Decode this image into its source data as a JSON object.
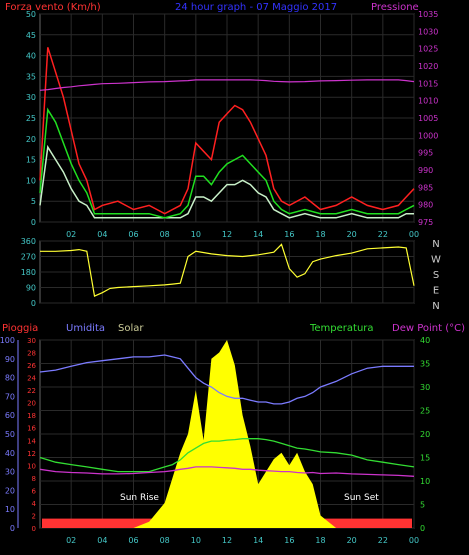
{
  "header": {
    "left_title": "Forza vento (Km/h)",
    "center_title": "24 hour graph - 07 Maggio 2017",
    "right_title": "Pressione"
  },
  "colors": {
    "wind_gust": "#ff2020",
    "wind_avg": "#20e020",
    "wind_speed": "#c8f0c8",
    "pressure": "#cc33cc",
    "direction": "#ffff33",
    "humidity": "#7b7bff",
    "temperature": "#33dd33",
    "dewpoint": "#cc33cc",
    "solar": "#ffff00",
    "rain": "#ff3333",
    "grid": "#2a2a2a",
    "axis_cyan": "#44c8c8"
  },
  "x_ticks": [
    "02",
    "04",
    "06",
    "08",
    "10",
    "12",
    "14",
    "16",
    "18",
    "20",
    "22",
    "00"
  ],
  "chart_data": [
    {
      "type": "line",
      "panel": "wind_pressure",
      "left_axis": {
        "label": "Forza vento (Km/h)",
        "ticks": [
          "0",
          "5",
          "10",
          "15",
          "20",
          "25",
          "30",
          "35",
          "40",
          "45",
          "50"
        ],
        "ylim": [
          0,
          50
        ]
      },
      "right_axis": {
        "label": "Pressione",
        "ticks": [
          "975",
          "980",
          "985",
          "990",
          "995",
          "1000",
          "1005",
          "1010",
          "1015",
          "1020",
          "1025",
          "1030",
          "1035"
        ],
        "ylim": [
          975,
          1035
        ]
      },
      "x": [
        0,
        0.5,
        1,
        1.5,
        2,
        2.5,
        3,
        3.5,
        4,
        5,
        6,
        7,
        8,
        9,
        9.5,
        10,
        10.5,
        11,
        11.5,
        12,
        12.5,
        13,
        13.5,
        14,
        14.5,
        15,
        15.5,
        16,
        17,
        18,
        19,
        20,
        21,
        22,
        23,
        23.5,
        24
      ],
      "series": [
        {
          "name": "Gust",
          "values": [
            10,
            42,
            36,
            30,
            22,
            14,
            10,
            3,
            4,
            5,
            3,
            4,
            2,
            4,
            8,
            19,
            17,
            15,
            24,
            26,
            28,
            27,
            24,
            20,
            16,
            8,
            5,
            4,
            6,
            3,
            4,
            6,
            4,
            3,
            4,
            6,
            8
          ]
        },
        {
          "name": "Avg",
          "values": [
            7,
            27,
            24,
            19,
            14,
            10,
            7,
            2,
            2,
            2,
            2,
            2,
            1,
            2,
            4,
            11,
            11,
            9,
            12,
            14,
            15,
            16,
            14,
            12,
            10,
            5,
            3,
            2,
            3,
            2,
            2,
            3,
            2,
            2,
            2,
            3,
            4
          ]
        },
        {
          "name": "Speed",
          "values": [
            4,
            18,
            15,
            12,
            8,
            5,
            4,
            1,
            1,
            1,
            1,
            1,
            1,
            1,
            2,
            6,
            6,
            5,
            7,
            9,
            9,
            10,
            9,
            7,
            6,
            3,
            2,
            1,
            2,
            1,
            1,
            2,
            1,
            1,
            1,
            2,
            2
          ]
        },
        {
          "name": "Pressione",
          "values": [
            1013,
            1013.2,
            1013.5,
            1013.8,
            1014,
            1014.3,
            1014.5,
            1014.7,
            1014.9,
            1015,
            1015.2,
            1015.4,
            1015.5,
            1015.7,
            1015.8,
            1016,
            1016,
            1016,
            1016,
            1016,
            1016,
            1016,
            1016,
            1015.9,
            1015.8,
            1015.6,
            1015.5,
            1015.4,
            1015.5,
            1015.7,
            1015.8,
            1015.9,
            1016,
            1016,
            1016,
            1015.8,
            1015.5
          ]
        }
      ]
    },
    {
      "type": "line",
      "panel": "wind_direction",
      "left_axis": {
        "ticks": [
          "0",
          "90",
          "180",
          "270",
          "360"
        ],
        "ylim": [
          0,
          360
        ]
      },
      "right_labels": [
        "N",
        "W",
        "S",
        "E",
        "N"
      ],
      "x": [
        0,
        1,
        2,
        2.5,
        3,
        3.5,
        4,
        4.5,
        5,
        6,
        7,
        8,
        8.5,
        9,
        9.5,
        10,
        11,
        12,
        13,
        14,
        15,
        15.5,
        16,
        16.5,
        17,
        17.5,
        18,
        19,
        20,
        21,
        22,
        23,
        23.5,
        24
      ],
      "series": [
        {
          "name": "Direzione",
          "values": [
            300,
            300,
            305,
            310,
            300,
            40,
            60,
            85,
            90,
            95,
            100,
            105,
            110,
            115,
            270,
            300,
            285,
            275,
            270,
            280,
            295,
            340,
            200,
            150,
            170,
            240,
            255,
            275,
            290,
            315,
            320,
            325,
            320,
            100
          ]
        }
      ]
    },
    {
      "type": "area",
      "panel": "solar_humidity_temperature",
      "labels": {
        "rain": "Pioggia",
        "humidity": "Umidita",
        "solar": "Solar",
        "temperature": "Temperatura",
        "dewpoint": "Dew Point (°C)"
      },
      "humidity_axis": {
        "ticks": [
          "0",
          "10",
          "20",
          "30",
          "40",
          "50",
          "60",
          "70",
          "80",
          "90",
          "100"
        ],
        "ylim": [
          0,
          100
        ]
      },
      "rain_axis": {
        "ticks": [
          "0",
          "2",
          "4",
          "6",
          "8",
          "10",
          "12",
          "14",
          "16",
          "18",
          "20",
          "22",
          "24",
          "26",
          "28",
          "30"
        ],
        "ylim": [
          0,
          30
        ]
      },
      "temperature_axis": {
        "ticks": [
          "0",
          "5",
          "10",
          "15",
          "20",
          "25",
          "30",
          "35",
          "40"
        ],
        "ylim": [
          0,
          40
        ]
      },
      "annotations": [
        "Sun Rise",
        "Sun Set"
      ],
      "x": [
        0,
        1,
        2,
        3,
        4,
        5,
        6,
        7,
        8,
        8.5,
        9,
        9.5,
        10,
        10.5,
        11,
        11.5,
        12,
        12.5,
        13,
        13.5,
        14,
        14.5,
        15,
        15.5,
        16,
        16.5,
        17,
        17.5,
        18,
        19,
        20,
        21,
        22,
        23,
        24
      ],
      "series": [
        {
          "name": "Umidita",
          "values": [
            83,
            84,
            86,
            88,
            89,
            90,
            91,
            91,
            92,
            91,
            90,
            85,
            80,
            77,
            75,
            72,
            70,
            69,
            69,
            68,
            67,
            67,
            66,
            66,
            67,
            69,
            70,
            72,
            75,
            78,
            82,
            85,
            86,
            86,
            86
          ]
        },
        {
          "name": "Temperatura",
          "values": [
            15,
            14,
            13.5,
            13,
            12.5,
            12,
            12,
            12,
            13,
            13.5,
            14.5,
            16,
            17,
            18,
            18.5,
            18.5,
            18.7,
            18.8,
            19,
            19,
            19,
            18.8,
            18.5,
            18,
            17.5,
            17,
            16.8,
            16.5,
            16.2,
            16,
            15.5,
            14.5,
            14,
            13.5,
            13
          ]
        },
        {
          "name": "Dew Point",
          "values": [
            12.5,
            12,
            11.8,
            11.7,
            11.5,
            11.5,
            11.6,
            11.8,
            12,
            12.2,
            12.5,
            12.7,
            13,
            13,
            13,
            12.9,
            12.8,
            12.7,
            12.5,
            12.5,
            12.3,
            12.2,
            12.1,
            12,
            12,
            11.8,
            11.7,
            11.8,
            11.6,
            11.7,
            11.5,
            11.4,
            11.3,
            11.2,
            11
          ]
        },
        {
          "name": "Solar",
          "values": [
            0,
            0,
            0,
            0,
            0,
            0,
            0,
            1,
            4,
            8,
            12,
            15,
            22,
            14,
            27,
            28,
            30,
            26,
            18,
            13,
            7,
            9,
            11,
            12,
            10,
            12,
            9,
            7,
            2,
            0,
            0,
            0,
            0,
            0,
            0
          ]
        },
        {
          "name": "Pioggia",
          "values": [
            1.5,
            1.5,
            1.5,
            1.5,
            1.5,
            1.5,
            1.5,
            1.5,
            1.5,
            1.5,
            1.5,
            1.5,
            1.5,
            1.5,
            1.5,
            1.5,
            1.5,
            1.5,
            1.5,
            1.5,
            1.5,
            1.5,
            1.5,
            1.5,
            1.5,
            1.5,
            1.5,
            1.5,
            1.5,
            1.5,
            1.5,
            1.5,
            1.5,
            1.5,
            1.5
          ]
        }
      ]
    }
  ]
}
